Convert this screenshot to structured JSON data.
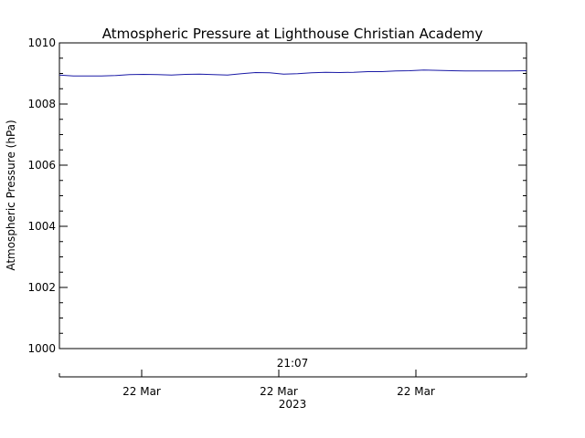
{
  "chart_data": {
    "type": "line",
    "title": "Atmospheric Pressure at Lighthouse Christian Academy",
    "ylabel": "Atmospheric Pressure (hPa)",
    "ylim": [
      1000,
      1010
    ],
    "yticks": [
      "1000",
      "1002",
      "1004",
      "1006",
      "1008",
      "1010"
    ],
    "x_annotation": "21:07",
    "x_tick_labels": [
      "22 Mar",
      "22 Mar",
      "22 Mar"
    ],
    "x_year": "2023",
    "grid": false,
    "series": [
      {
        "color": "#1a1aa6",
        "x": [
          0,
          0.03,
          0.06,
          0.09,
          0.12,
          0.15,
          0.18,
          0.21,
          0.24,
          0.27,
          0.3,
          0.33,
          0.36,
          0.39,
          0.42,
          0.45,
          0.48,
          0.51,
          0.54,
          0.57,
          0.6,
          0.63,
          0.66,
          0.69,
          0.72,
          0.75,
          0.78,
          0.81,
          0.84,
          0.87,
          0.9,
          0.93,
          0.96,
          1.0
        ],
        "values": [
          1008.95,
          1008.92,
          1008.92,
          1008.92,
          1008.93,
          1008.96,
          1008.97,
          1008.96,
          1008.95,
          1008.97,
          1008.98,
          1008.96,
          1008.95,
          1008.99,
          1009.03,
          1009.02,
          1008.98,
          1008.99,
          1009.02,
          1009.04,
          1009.03,
          1009.04,
          1009.06,
          1009.06,
          1009.08,
          1009.09,
          1009.11,
          1009.1,
          1009.09,
          1009.08,
          1009.08,
          1009.08,
          1009.08,
          1009.09
        ]
      }
    ]
  }
}
